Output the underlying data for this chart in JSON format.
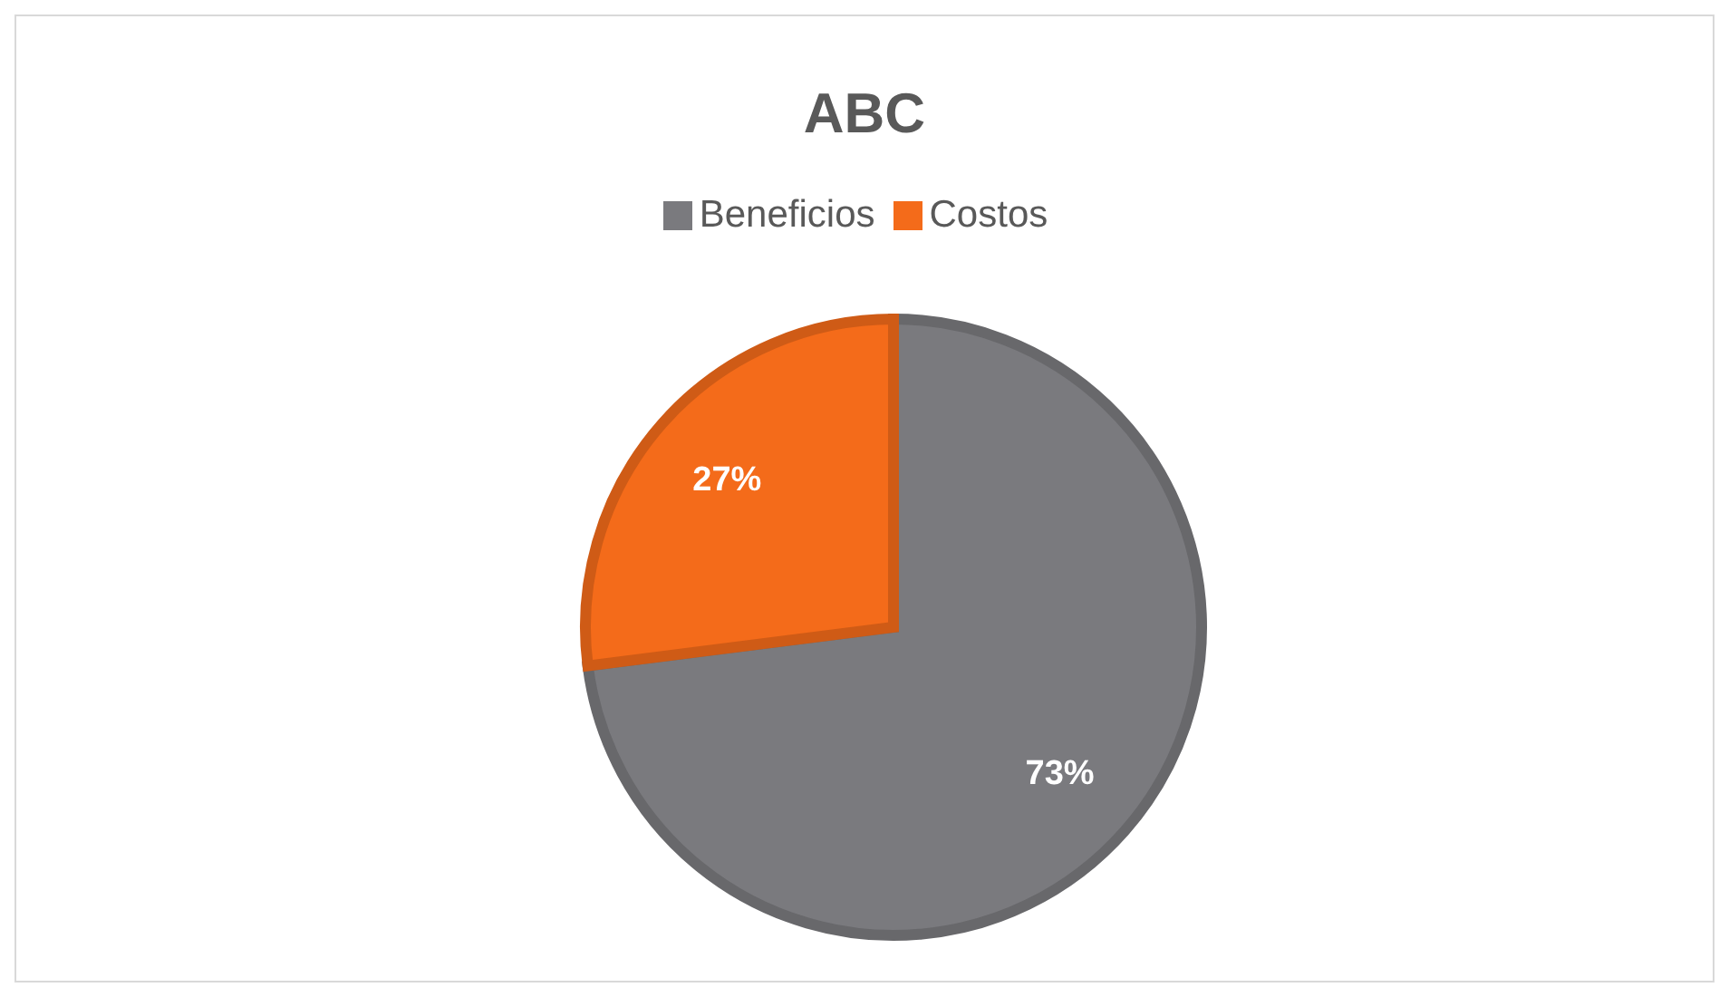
{
  "chart_data": {
    "type": "pie",
    "title": "ABC",
    "categories": [
      "Beneficios",
      "Costos"
    ],
    "values": [
      73,
      27
    ],
    "colors": [
      "#7a7a7e",
      "#f46b1a"
    ],
    "value_labels": [
      "73%",
      "27%"
    ],
    "legend": "top"
  }
}
